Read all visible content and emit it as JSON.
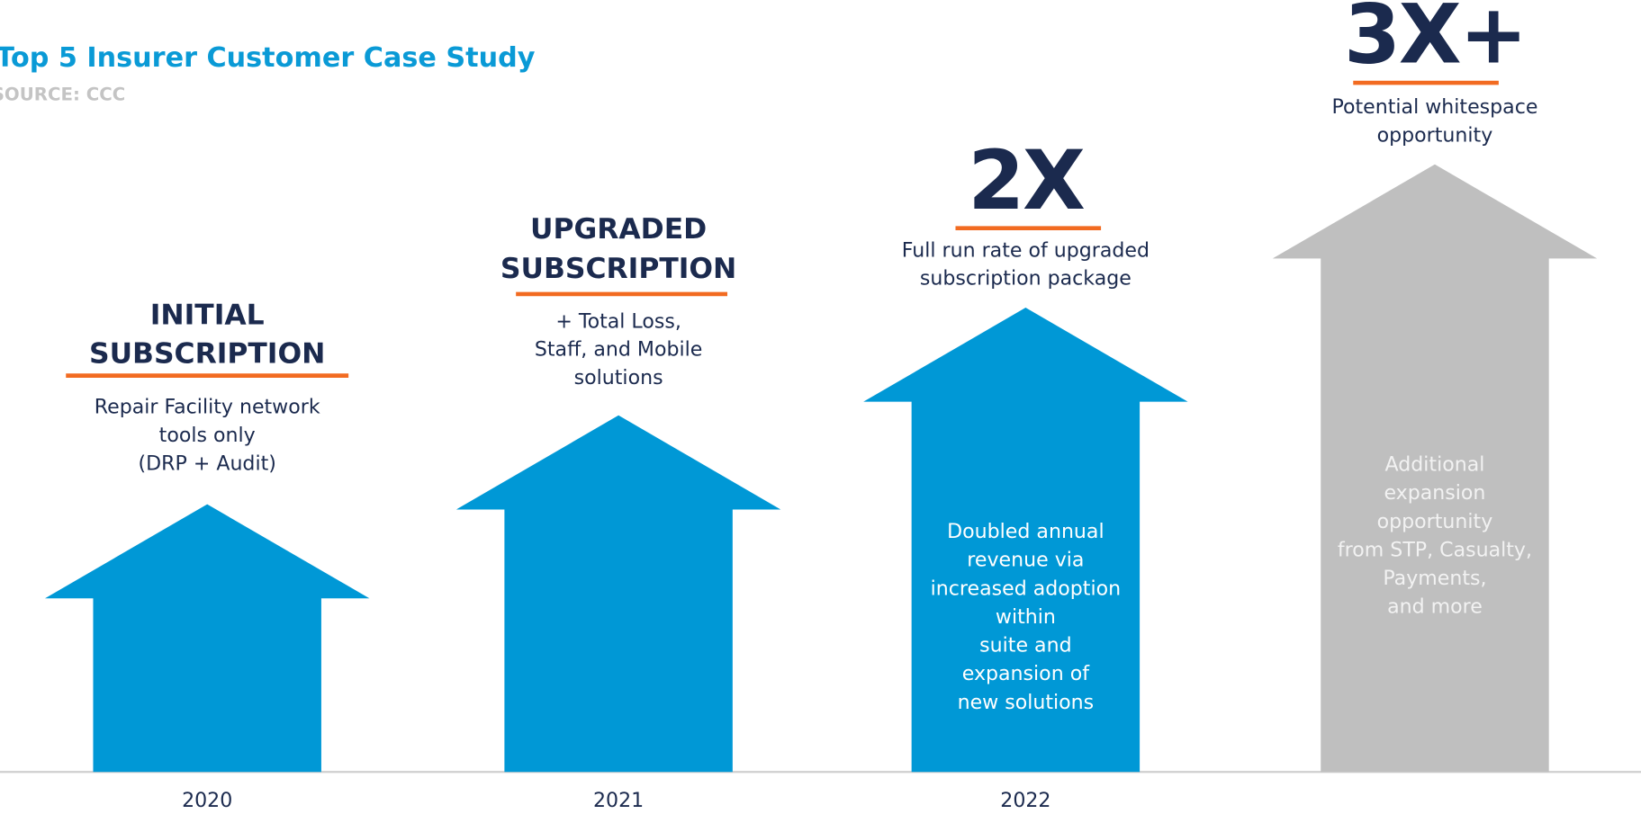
{
  "header": {
    "title": "Top 5 Insurer Customer Case Study",
    "source": "SOURCE: CCC"
  },
  "columns": [
    {
      "heading": [
        "INITIAL",
        "SUBSCRIPTION"
      ],
      "description": [
        "Repair Facility network",
        "tools only",
        "(DRP + Audit)"
      ],
      "arrow_text": [],
      "year": "2020"
    },
    {
      "heading": [
        "UPGRADED",
        "SUBSCRIPTION"
      ],
      "description": [
        "+ Total Loss,",
        "Staff, and Mobile",
        "solutions"
      ],
      "arrow_text": [],
      "year": "2021"
    },
    {
      "heading": [
        "2X"
      ],
      "description": [
        "Full run rate of upgraded",
        "subscription package"
      ],
      "arrow_text": [
        "Doubled annual",
        "revenue via",
        "increased adoption",
        "within",
        "suite and",
        "expansion of",
        "new solutions"
      ],
      "year": "2022"
    },
    {
      "heading": [
        "3X+"
      ],
      "description": [
        "Potential whitespace",
        "opportunity"
      ],
      "arrow_text": [
        "Additional",
        "expansion",
        "opportunity",
        "from STP, Casualty,",
        "Payments,",
        "and more"
      ]
    }
  ]
}
